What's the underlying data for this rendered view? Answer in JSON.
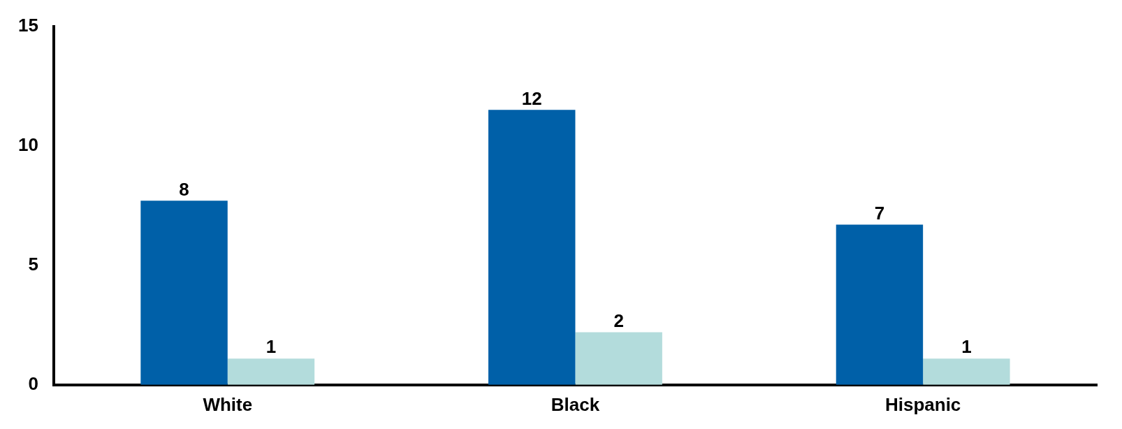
{
  "chart_data": {
    "type": "bar",
    "categories": [
      "White",
      "Black",
      "Hispanic"
    ],
    "series": [
      {
        "color": "#0060a8",
        "values": [
          7.7,
          11.5,
          6.7
        ],
        "value_labels": [
          "8",
          "12",
          "7"
        ]
      },
      {
        "color": "#b3dcdc",
        "values": [
          1.1,
          2.2,
          1.1
        ],
        "value_labels": [
          "1",
          "2",
          "1"
        ]
      }
    ],
    "ylim": [
      0,
      15
    ],
    "yticks": [
      0,
      5,
      10,
      15
    ],
    "grid": false,
    "legend": false
  }
}
